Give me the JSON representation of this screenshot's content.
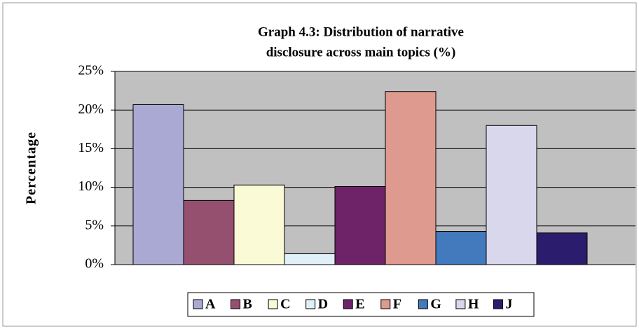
{
  "chart_data": {
    "type": "bar",
    "title": [
      "Graph 4.3: Distribution of narrative",
      "disclosure across main topics (%)"
    ],
    "y_label": "Percentage",
    "series": [
      {
        "name": "A",
        "color": "#a9a9d3",
        "values": [
          20.7
        ]
      },
      {
        "name": "B",
        "color": "#95506f",
        "values": [
          8.3
        ]
      },
      {
        "name": "C",
        "color": "#fafad6",
        "values": [
          10.3
        ]
      },
      {
        "name": "D",
        "color": "#e0f0f8",
        "values": [
          1.4
        ]
      },
      {
        "name": "E",
        "color": "#6e2368",
        "values": [
          10.1
        ]
      },
      {
        "name": "F",
        "color": "#de9a8e",
        "values": [
          22.4
        ]
      },
      {
        "name": "G",
        "color": "#4379bd",
        "values": [
          4.3
        ]
      },
      {
        "name": "H",
        "color": "#d8d7ec",
        "values": [
          18.0
        ]
      },
      {
        "name": "J",
        "color": "#2c1c6e",
        "values": [
          4.1
        ]
      }
    ],
    "ylim": [
      0,
      25
    ],
    "yticks": [
      {
        "value": 0,
        "label": "0%"
      },
      {
        "value": 5,
        "label": "5%"
      },
      {
        "value": 10,
        "label": "10%"
      },
      {
        "value": 15,
        "label": "15%"
      },
      {
        "value": 20,
        "label": "20%"
      },
      {
        "value": 25,
        "label": "25%"
      }
    ],
    "grid": true,
    "legend": "bottom"
  }
}
